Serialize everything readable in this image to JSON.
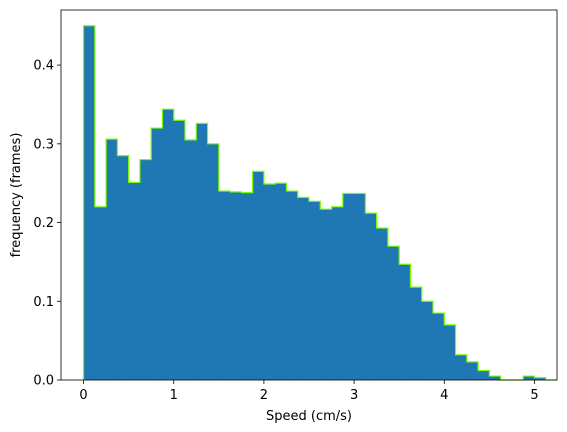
{
  "chart_data": {
    "type": "bar",
    "subtype": "histogram",
    "xlabel": "Speed (cm/s)",
    "ylabel": "frequency (frames)",
    "xlim": [
      -0.25,
      5.25
    ],
    "ylim": [
      0,
      0.47
    ],
    "xticks": [
      0,
      1,
      2,
      3,
      4,
      5
    ],
    "yticks": [
      0.0,
      0.1,
      0.2,
      0.3,
      0.4
    ],
    "xtick_labels": [
      "0",
      "1",
      "2",
      "3",
      "4",
      "5"
    ],
    "ytick_labels": [
      "0.0",
      "0.1",
      "0.2",
      "0.3",
      "0.4"
    ],
    "bin_width": 0.125,
    "bin_start": 0,
    "values": [
      0.45,
      0.22,
      0.306,
      0.285,
      0.251,
      0.28,
      0.32,
      0.344,
      0.33,
      0.305,
      0.326,
      0.3,
      0.24,
      0.239,
      0.238,
      0.265,
      0.249,
      0.25,
      0.24,
      0.232,
      0.227,
      0.217,
      0.22,
      0.237,
      0.237,
      0.212,
      0.193,
      0.17,
      0.147,
      0.118,
      0.1,
      0.085,
      0.07,
      0.032,
      0.023,
      0.012,
      0.005,
      0.0,
      0.0,
      0.005,
      0.003,
      0.0
    ],
    "bar_color": "#1f77b4",
    "edge_color": "#7cfc00",
    "grid": false,
    "legend": false
  }
}
